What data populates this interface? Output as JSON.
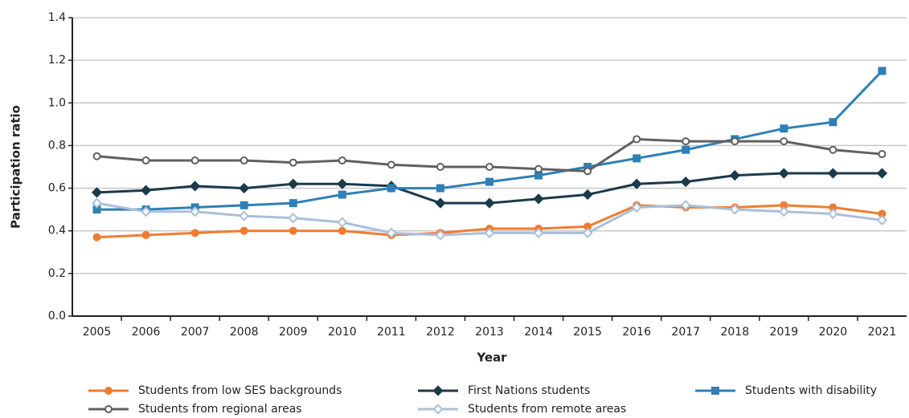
{
  "chart_data": {
    "type": "line",
    "y_label": "Participation ratio",
    "x_label": "Year",
    "categories": [
      "2005",
      "2006",
      "2007",
      "2008",
      "2009",
      "2010",
      "2011",
      "2012",
      "2013",
      "2014",
      "2015",
      "2016",
      "2017",
      "2018",
      "2019",
      "2020",
      "2021"
    ],
    "ylim": [
      0,
      1.4
    ],
    "yticks": [
      {
        "value": 0,
        "label": "0.0"
      },
      0.2,
      0.4,
      0.6,
      0.8,
      {
        "value": 1,
        "label": "1.0"
      },
      1.2,
      1.4
    ],
    "grid": true,
    "series": [
      {
        "name": "Students from low SES backgrounds",
        "color": "#ef7d30",
        "marker": "circle",
        "hollow": false,
        "values": [
          0.37,
          0.38,
          0.39,
          0.4,
          0.4,
          0.4,
          0.38,
          0.39,
          0.41,
          0.41,
          0.42,
          0.52,
          0.51,
          0.51,
          0.52,
          0.51,
          0.48
        ]
      },
      {
        "name": "First Nations students",
        "color": "#1b3a4b",
        "marker": "diamond",
        "hollow": false,
        "values": [
          0.58,
          0.59,
          0.61,
          0.6,
          0.62,
          0.62,
          0.61,
          0.53,
          0.53,
          0.55,
          0.57,
          0.62,
          0.63,
          0.66,
          0.67,
          0.67,
          0.67
        ]
      },
      {
        "name": "Students with disability",
        "color": "#2f80b5",
        "marker": "square",
        "hollow": false,
        "values": [
          0.5,
          0.5,
          0.51,
          0.52,
          0.53,
          0.57,
          0.6,
          0.6,
          0.63,
          0.66,
          0.7,
          0.74,
          0.78,
          0.83,
          0.88,
          0.91,
          1.15
        ]
      },
      {
        "name": "Students from regional areas",
        "color": "#606060",
        "marker": "circle",
        "hollow": true,
        "values": [
          0.75,
          0.73,
          0.73,
          0.73,
          0.72,
          0.73,
          0.71,
          0.7,
          0.7,
          0.69,
          0.68,
          0.83,
          0.82,
          0.82,
          0.82,
          0.78,
          0.76
        ]
      },
      {
        "name": "Students from remote areas",
        "color": "#a9bfdc",
        "marker": "diamond",
        "hollow": true,
        "values": [
          0.53,
          0.49,
          0.49,
          0.47,
          0.46,
          0.44,
          0.39,
          0.38,
          0.39,
          0.39,
          0.39,
          0.51,
          0.52,
          0.5,
          0.49,
          0.48,
          0.45
        ]
      }
    ]
  }
}
